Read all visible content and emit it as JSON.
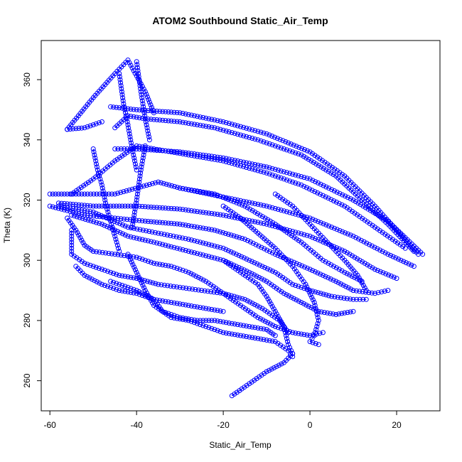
{
  "chart_data": {
    "type": "scatter",
    "title": "ATOM2 Southbound Static_Air_Temp",
    "xlabel": "Static_Air_Temp",
    "ylabel": "Theta (K)",
    "xlim": [
      -62,
      30
    ],
    "ylim": [
      250,
      373
    ],
    "xticks": [
      -60,
      -40,
      -20,
      0,
      20
    ],
    "yticks": [
      260,
      280,
      300,
      320,
      340,
      360
    ],
    "grid": false,
    "legend": "none",
    "color": "#0000ff",
    "marker": "open-circle",
    "series": [
      {
        "values": [
          [
            -56,
            343.5
          ],
          [
            -50,
            354
          ],
          [
            -45,
            362
          ],
          [
            -42,
            366.5
          ],
          [
            -38,
            356
          ],
          [
            -36,
            349
          ]
        ]
      },
      {
        "values": [
          [
            -56,
            343.5
          ],
          [
            -52,
            344
          ],
          [
            -48,
            346
          ]
        ]
      },
      {
        "values": [
          [
            -46,
            351
          ],
          [
            -40,
            350
          ],
          [
            -30,
            349
          ],
          [
            -20,
            346
          ],
          [
            -10,
            342
          ],
          [
            0,
            336
          ],
          [
            8,
            328
          ],
          [
            15,
            318
          ],
          [
            20,
            310
          ],
          [
            25,
            302
          ]
        ]
      },
      {
        "values": [
          [
            -45,
            344
          ],
          [
            -42,
            348
          ],
          [
            -38,
            347
          ],
          [
            -30,
            346
          ],
          [
            -22,
            344
          ],
          [
            -12,
            340
          ],
          [
            -2,
            335
          ],
          [
            6,
            328
          ],
          [
            12,
            320
          ],
          [
            18,
            312
          ],
          [
            24,
            303
          ]
        ]
      },
      {
        "values": [
          [
            -45,
            337
          ],
          [
            -40,
            337
          ],
          [
            -30,
            336
          ],
          [
            -20,
            334
          ],
          [
            -10,
            331
          ],
          [
            0,
            327
          ],
          [
            10,
            320
          ],
          [
            18,
            313
          ],
          [
            26,
            302
          ]
        ]
      },
      {
        "values": [
          [
            -55,
            322
          ],
          [
            -50,
            327
          ],
          [
            -45,
            333
          ],
          [
            -40,
            338
          ],
          [
            -36,
            337
          ],
          [
            -28,
            335
          ],
          [
            -20,
            333
          ],
          [
            -10,
            329
          ],
          [
            -2,
            325
          ],
          [
            8,
            318
          ],
          [
            15,
            311
          ],
          [
            22,
            304
          ]
        ]
      },
      {
        "values": [
          [
            -60,
            322
          ],
          [
            -52,
            322
          ],
          [
            -45,
            322
          ],
          [
            -35,
            326
          ],
          [
            -30,
            324
          ],
          [
            -20,
            321
          ],
          [
            -10,
            318
          ],
          [
            0,
            314
          ],
          [
            10,
            308
          ],
          [
            18,
            302
          ],
          [
            24,
            298
          ]
        ]
      },
      {
        "values": [
          [
            -58,
            319
          ],
          [
            -50,
            318
          ],
          [
            -40,
            318
          ],
          [
            -30,
            317
          ],
          [
            -20,
            315
          ],
          [
            -10,
            312
          ],
          [
            0,
            308
          ],
          [
            8,
            303
          ],
          [
            15,
            297
          ],
          [
            20,
            294
          ]
        ]
      },
      {
        "values": [
          [
            -60,
            318
          ],
          [
            -52,
            315
          ],
          [
            -45,
            314
          ],
          [
            -38,
            313
          ],
          [
            -30,
            312
          ],
          [
            -22,
            310
          ],
          [
            -15,
            307
          ],
          [
            -8,
            302
          ],
          [
            0,
            297
          ],
          [
            6,
            293
          ],
          [
            10,
            290
          ],
          [
            15,
            289
          ],
          [
            18,
            290
          ]
        ]
      },
      {
        "values": [
          [
            -58,
            318
          ],
          [
            -50,
            316
          ],
          [
            -42,
            311
          ],
          [
            -35,
            309
          ],
          [
            -28,
            307
          ],
          [
            -20,
            304
          ],
          [
            -14,
            300
          ],
          [
            -8,
            296
          ],
          [
            -4,
            292
          ],
          [
            0,
            290
          ],
          [
            5,
            288
          ],
          [
            10,
            287
          ],
          [
            13,
            287
          ]
        ]
      },
      {
        "values": [
          [
            -55,
            315
          ],
          [
            -48,
            312
          ],
          [
            -42,
            308
          ],
          [
            -36,
            306
          ],
          [
            -28,
            303
          ],
          [
            -20,
            300
          ],
          [
            -14,
            296
          ],
          [
            -10,
            293
          ],
          [
            -6,
            289
          ],
          [
            -2,
            286
          ],
          [
            2,
            283
          ],
          [
            6,
            282
          ],
          [
            10,
            283
          ]
        ]
      },
      {
        "values": [
          [
            -56,
            314
          ],
          [
            -54,
            310
          ],
          [
            -52,
            305
          ],
          [
            -50,
            303
          ],
          [
            -45,
            302
          ],
          [
            -40,
            301
          ],
          [
            -36,
            299
          ],
          [
            -32,
            298
          ],
          [
            -28,
            296
          ],
          [
            -24,
            293
          ],
          [
            -20,
            289
          ],
          [
            -16,
            285
          ],
          [
            -12,
            281
          ],
          [
            -8,
            278
          ],
          [
            -4,
            276
          ],
          [
            0,
            275
          ],
          [
            3,
            276
          ]
        ]
      },
      {
        "values": [
          [
            -55,
            310
          ],
          [
            -55,
            302
          ],
          [
            -52,
            299
          ],
          [
            -48,
            297
          ],
          [
            -44,
            295
          ],
          [
            -40,
            294
          ],
          [
            -35,
            292
          ],
          [
            -30,
            291
          ],
          [
            -25,
            290
          ],
          [
            -20,
            289
          ],
          [
            -15,
            287
          ],
          [
            -11,
            284
          ],
          [
            -7,
            280
          ],
          [
            -5,
            276
          ]
        ]
      },
      {
        "values": [
          [
            -54,
            298
          ],
          [
            -52,
            295
          ],
          [
            -48,
            292
          ],
          [
            -44,
            290
          ],
          [
            -40,
            289
          ],
          [
            -36,
            287
          ],
          [
            -32,
            286
          ],
          [
            -28,
            285
          ],
          [
            -24,
            284
          ],
          [
            -20,
            283
          ]
        ]
      },
      {
        "values": [
          [
            -46,
            293
          ],
          [
            -40,
            290
          ],
          [
            -36,
            287
          ],
          [
            -34,
            283
          ],
          [
            -30,
            281
          ],
          [
            -26,
            280
          ],
          [
            -22,
            280
          ],
          [
            -18,
            279
          ],
          [
            -14,
            278
          ],
          [
            -10,
            277
          ],
          [
            -8,
            275
          ]
        ]
      },
      {
        "values": [
          [
            -42,
            302
          ],
          [
            -40,
            296
          ],
          [
            -38,
            290
          ],
          [
            -36,
            285
          ],
          [
            -32,
            281
          ],
          [
            -28,
            280
          ],
          [
            -24,
            278
          ],
          [
            -20,
            276
          ],
          [
            -16,
            275
          ],
          [
            -12,
            274
          ],
          [
            -8,
            273
          ],
          [
            -5,
            270
          ],
          [
            -4,
            268
          ]
        ]
      },
      {
        "values": [
          [
            -20,
            300
          ],
          [
            -16,
            296
          ],
          [
            -12,
            292
          ],
          [
            -10,
            288
          ],
          [
            -8,
            283
          ],
          [
            -6,
            278
          ],
          [
            -5,
            272
          ],
          [
            -4,
            269
          ]
        ]
      },
      {
        "values": [
          [
            -20,
            318
          ],
          [
            -16,
            314
          ],
          [
            -12,
            309
          ],
          [
            -8,
            304
          ],
          [
            -4,
            298
          ],
          [
            -1,
            292
          ],
          [
            1,
            286
          ],
          [
            2,
            280
          ],
          [
            1,
            275
          ],
          [
            0,
            273
          ],
          [
            2,
            272
          ]
        ]
      },
      {
        "values": [
          [
            -8,
            322
          ],
          [
            -4,
            318
          ],
          [
            0,
            312
          ],
          [
            4,
            306
          ],
          [
            8,
            300
          ],
          [
            11,
            295
          ],
          [
            13,
            290
          ]
        ]
      },
      {
        "values": [
          [
            -30,
            324
          ],
          [
            -22,
            322
          ],
          [
            -15,
            318
          ],
          [
            -8,
            312
          ],
          [
            -2,
            306
          ],
          [
            3,
            300
          ],
          [
            8,
            296
          ],
          [
            12,
            293
          ]
        ]
      },
      {
        "values": [
          [
            -41,
            311
          ],
          [
            -40,
            320
          ],
          [
            -39,
            330
          ],
          [
            -38,
            338
          ]
        ]
      },
      {
        "values": [
          [
            -44,
            362
          ],
          [
            -43,
            352
          ],
          [
            -42,
            345
          ],
          [
            -41,
            337
          ],
          [
            -40,
            330
          ]
        ]
      },
      {
        "values": [
          [
            -40,
            366
          ],
          [
            -39,
            356
          ],
          [
            -38,
            347
          ],
          [
            -37,
            340
          ]
        ]
      },
      {
        "values": [
          [
            -50,
            337
          ],
          [
            -49,
            330
          ],
          [
            -48,
            325
          ],
          [
            -47,
            318
          ],
          [
            -46,
            313
          ],
          [
            -45,
            308
          ],
          [
            -44,
            303
          ]
        ]
      },
      {
        "values": [
          [
            -18,
            255
          ],
          [
            -14,
            259
          ],
          [
            -10,
            263
          ],
          [
            -6,
            266
          ],
          [
            -4,
            269
          ]
        ]
      }
    ]
  }
}
